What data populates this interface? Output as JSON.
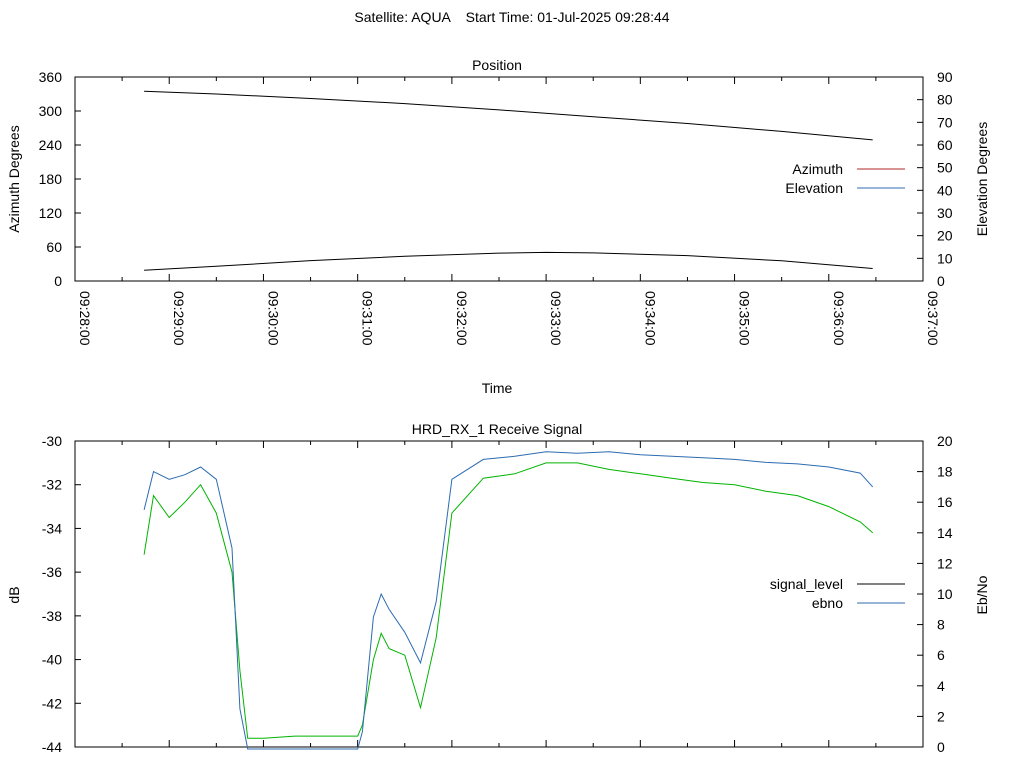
{
  "header": {
    "title": "Satellite: AQUA    Start Time: 01-Jul-2025 09:28:44"
  },
  "colors": {
    "azimuth": "#b22a2a",
    "elevation": "#2c6bb0",
    "signal_level": "#000000",
    "ebno": "#2c6bb0",
    "signal_green": "#00b300"
  },
  "chart_data": [
    {
      "id": "position",
      "type": "line",
      "title": "Position",
      "xlabel": "Time",
      "ylabel": "Azimuth Degrees",
      "y2label": "Elevation Degrees",
      "xlim": [
        "09:28:00",
        "09:37:00"
      ],
      "x_ticks": [
        "09:28:00",
        "09:29:00",
        "09:30:00",
        "09:31:00",
        "09:32:00",
        "09:33:00",
        "09:34:00",
        "09:35:00",
        "09:36:00",
        "09:37:00"
      ],
      "ylim": [
        0,
        360
      ],
      "y_ticks": [
        0,
        60,
        120,
        180,
        240,
        300,
        360
      ],
      "y2lim": [
        0,
        90
      ],
      "y2_ticks": [
        0,
        10,
        20,
        30,
        40,
        50,
        60,
        70,
        80,
        90
      ],
      "legend_position": "right",
      "series": [
        {
          "name": "Azimuth",
          "axis": "y",
          "x": [
            "09:28:44",
            "09:29:30",
            "09:30:30",
            "09:31:30",
            "09:32:30",
            "09:33:30",
            "09:34:30",
            "09:35:30",
            "09:36:28"
          ],
          "values": [
            335,
            330,
            322,
            313,
            302,
            290,
            278,
            264,
            249
          ]
        },
        {
          "name": "Elevation",
          "axis": "y2",
          "x": [
            "09:28:44",
            "09:29:30",
            "09:30:30",
            "09:31:30",
            "09:32:30",
            "09:33:00",
            "09:33:30",
            "09:34:30",
            "09:35:30",
            "09:36:28"
          ],
          "values": [
            4.7,
            6.5,
            9.0,
            10.9,
            12.3,
            12.6,
            12.4,
            11.2,
            8.9,
            5.5
          ]
        }
      ]
    },
    {
      "id": "signal",
      "type": "line",
      "title": "HRD_RX_1 Receive Signal",
      "ylabel": "dB",
      "y2label": "Eb/No",
      "xlim": [
        "09:28:00",
        "09:37:00"
      ],
      "ylim": [
        -44,
        -30
      ],
      "y_ticks": [
        -44,
        -42,
        -40,
        -38,
        -36,
        -34,
        -32,
        -30
      ],
      "y2lim": [
        0,
        20
      ],
      "y2_ticks": [
        0,
        2,
        4,
        6,
        8,
        10,
        12,
        14,
        16,
        18,
        20
      ],
      "legend_position": "right",
      "series": [
        {
          "name": "signal_level",
          "axis": "y",
          "x": [
            "09:28:44",
            "09:28:50",
            "09:29:00",
            "09:29:10",
            "09:29:20",
            "09:29:30",
            "09:29:40",
            "09:29:45",
            "09:29:50",
            "09:30:00",
            "09:30:20",
            "09:30:40",
            "09:31:00",
            "09:31:03",
            "09:31:10",
            "09:31:15",
            "09:31:20",
            "09:31:30",
            "09:31:40",
            "09:31:50",
            "09:32:00",
            "09:32:20",
            "09:32:40",
            "09:33:00",
            "09:33:20",
            "09:33:40",
            "09:34:00",
            "09:34:20",
            "09:34:40",
            "09:35:00",
            "09:35:20",
            "09:35:40",
            "09:36:00",
            "09:36:20",
            "09:36:28"
          ],
          "values": [
            -35.2,
            -32.5,
            -33.5,
            -32.8,
            -32.0,
            -33.3,
            -36.0,
            -40.5,
            -43.6,
            -43.6,
            -43.5,
            -43.5,
            -43.5,
            -43.0,
            -40.0,
            -38.8,
            -39.5,
            -39.8,
            -42.2,
            -39.0,
            -33.3,
            -31.7,
            -31.5,
            -31.0,
            -31.0,
            -31.3,
            -31.5,
            -31.7,
            -31.9,
            -32.0,
            -32.3,
            -32.5,
            -33.0,
            -33.7,
            -34.2
          ]
        },
        {
          "name": "ebno",
          "axis": "y2",
          "x": [
            "09:28:44",
            "09:28:50",
            "09:29:00",
            "09:29:10",
            "09:29:20",
            "09:29:30",
            "09:29:40",
            "09:29:45",
            "09:29:50",
            "09:30:00",
            "09:30:20",
            "09:30:40",
            "09:31:00",
            "09:31:03",
            "09:31:10",
            "09:31:15",
            "09:31:20",
            "09:31:30",
            "09:31:40",
            "09:31:50",
            "09:32:00",
            "09:32:20",
            "09:32:40",
            "09:33:00",
            "09:33:20",
            "09:33:40",
            "09:34:00",
            "09:34:20",
            "09:34:40",
            "09:35:00",
            "09:35:20",
            "09:35:40",
            "09:36:00",
            "09:36:20",
            "09:36:28"
          ],
          "values": [
            15.5,
            18.0,
            17.5,
            17.8,
            18.3,
            17.5,
            13.0,
            2.5,
            -1.0,
            -1.0,
            -1.0,
            -1.0,
            -1.0,
            1.0,
            8.5,
            10.0,
            9.0,
            7.5,
            5.5,
            9.5,
            17.5,
            18.8,
            19.0,
            19.3,
            19.2,
            19.3,
            19.1,
            19.0,
            18.9,
            18.8,
            18.6,
            18.5,
            18.3,
            17.9,
            17.0
          ]
        }
      ]
    }
  ]
}
